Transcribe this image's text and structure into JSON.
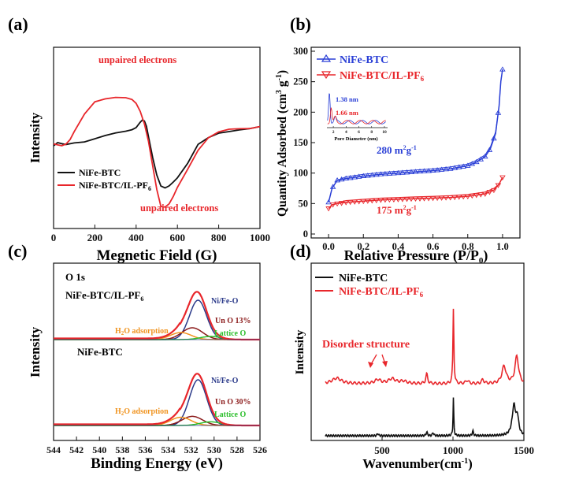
{
  "colors": {
    "black": "#111111",
    "red": "#e8262b",
    "blue": "#2a3fd6",
    "navy": "#2b3a8a",
    "darkred": "#8b1a1a",
    "orange": "#f0931e",
    "green": "#2dbf2d"
  },
  "chart_data": [
    {
      "panel_label": "(a)",
      "type": "line",
      "xlabel": "Megnetic Field (G)",
      "ylabel": "Intensity",
      "xlim": [
        0,
        1000
      ],
      "xticks": [
        "0",
        "200",
        "400",
        "600",
        "800",
        "1000"
      ],
      "legend": [
        "NiFe-BTC",
        "NiFe-BTC/IL-PF6"
      ],
      "annotations": [
        "unpaired electrons",
        "unpaired electrons"
      ],
      "series": [
        {
          "name": "NiFe-BTC",
          "color": "#111111",
          "x": [
            0,
            20,
            40,
            60,
            100,
            150,
            200,
            250,
            300,
            350,
            380,
            400,
            420,
            430,
            440,
            450,
            460,
            480,
            500,
            520,
            540,
            560,
            580,
            600,
            650,
            700,
            750,
            800,
            850,
            900,
            950,
            1000
          ],
          "y": [
            0.54,
            0.56,
            0.55,
            0.55,
            0.57,
            0.58,
            0.6,
            0.62,
            0.64,
            0.66,
            0.68,
            0.7,
            0.74,
            0.75,
            0.74,
            0.7,
            0.62,
            0.45,
            0.3,
            0.2,
            0.18,
            0.2,
            0.24,
            0.28,
            0.4,
            0.55,
            0.6,
            0.64,
            0.66,
            0.68,
            0.69,
            0.7
          ]
        },
        {
          "name": "NiFe-BTC/IL-PF6",
          "color": "#e8262b",
          "x": [
            0,
            20,
            40,
            60,
            80,
            100,
            150,
            200,
            250,
            300,
            350,
            380,
            400,
            420,
            440,
            460,
            480,
            500,
            520,
            540,
            560,
            580,
            600,
            650,
            700,
            750,
            800,
            850,
            900,
            950,
            1000
          ],
          "y": [
            0.55,
            0.54,
            0.54,
            0.56,
            0.6,
            0.66,
            0.8,
            0.9,
            0.93,
            0.95,
            0.95,
            0.93,
            0.89,
            0.82,
            0.72,
            0.58,
            0.38,
            0.18,
            0.03,
            0.02,
            0.05,
            0.12,
            0.2,
            0.35,
            0.5,
            0.6,
            0.65,
            0.68,
            0.69,
            0.69,
            0.7
          ]
        }
      ]
    },
    {
      "panel_label": "(b)",
      "type": "line",
      "xlabel": "Relative Pressure (P/P0)",
      "ylabel": "Quantity Adsorbed (cm3 g-1)",
      "xlim": [
        -0.1,
        1.1
      ],
      "ylim": [
        0,
        300
      ],
      "xticks": [
        "0.0",
        "0.2",
        "0.4",
        "0.6",
        "0.8",
        "1.0"
      ],
      "yticks": [
        "0",
        "50",
        "100",
        "150",
        "200",
        "250",
        "300"
      ],
      "legend": [
        "NiFe-BTC",
        "NiFe-BTC/IL-PF6"
      ],
      "annotations": [
        "280 m2g-1",
        "175 m2g-1"
      ],
      "series": [
        {
          "name": "NiFe-BTC",
          "color": "#2a3fd6",
          "x": [
            0.0,
            0.02,
            0.05,
            0.1,
            0.2,
            0.3,
            0.4,
            0.5,
            0.6,
            0.7,
            0.8,
            0.85,
            0.9,
            0.93,
            0.96,
            0.98,
            0.99,
            1.0
          ],
          "y": [
            52,
            75,
            88,
            91,
            95,
            98,
            100,
            102,
            104,
            107,
            112,
            118,
            127,
            140,
            165,
            210,
            250,
            270
          ]
        },
        {
          "name": "NiFe-BTC/IL-PF6",
          "color": "#e8262b",
          "x": [
            0.0,
            0.02,
            0.05,
            0.1,
            0.2,
            0.3,
            0.4,
            0.5,
            0.6,
            0.7,
            0.8,
            0.85,
            0.9,
            0.95,
            0.98,
            1.0
          ],
          "y": [
            42,
            48,
            50,
            52,
            54,
            56,
            57,
            58,
            59,
            60,
            62,
            64,
            66,
            72,
            82,
            93
          ]
        }
      ],
      "inset": {
        "xlabel": "Pore Diameter (nm)",
        "xticks": [
          "2",
          "4",
          "6",
          "8",
          "10"
        ],
        "annotations": [
          "1.38 nm",
          "1.66 nm"
        ]
      }
    },
    {
      "panel_label": "(c)",
      "type": "line",
      "title": "O 1s",
      "xlabel": "Binding Energy (eV)",
      "ylabel": "Intensity",
      "xlim": [
        544,
        526
      ],
      "xticks": [
        "544",
        "542",
        "540",
        "538",
        "536",
        "534",
        "532",
        "530",
        "528",
        "526"
      ],
      "sample_labels": [
        "NiFe-BTC/IL-PF6",
        "NiFe-BTC"
      ],
      "component_labels_top": [
        "Ni/Fe-O",
        "Un O 13%",
        "H2O adsorption",
        "Lattice O"
      ],
      "component_labels_bottom": [
        "Ni/Fe-O",
        "Un O 30%",
        "H2O adsorption",
        "Lattice O"
      ]
    },
    {
      "panel_label": "(d)",
      "type": "line",
      "xlabel": "Wavenumber(cm-1)",
      "ylabel": "Intensity",
      "xlim": [
        0,
        1500
      ],
      "xticks": [
        "500",
        "1000",
        "1500"
      ],
      "legend": [
        "NiFe-BTC",
        "NiFe-BTC/IL-PF6"
      ],
      "annotations": [
        "Disorder structure"
      ]
    }
  ],
  "text": {
    "a_legend_1": "NiFe-BTC",
    "a_legend_2": "NiFe-BTC/IL-PF",
    "b_legend_1": "NiFe-BTC",
    "b_legend_2": "NiFe-BTC/IL-PF",
    "b_area_1": "280 m",
    "b_area_2": "175 m",
    "b_inset_1": "1.38 nm",
    "b_inset_2": "1.66 nm",
    "b_inset_xlabel": "Pore Diameter (nm)",
    "c_title": "O 1s",
    "c_sample_top": "NiFe-BTC/IL-PF",
    "c_sample_bottom": "NiFe-BTC",
    "d_legend_1": "NiFe-BTC",
    "d_legend_2": "NiFe-BTC/IL-PF"
  }
}
